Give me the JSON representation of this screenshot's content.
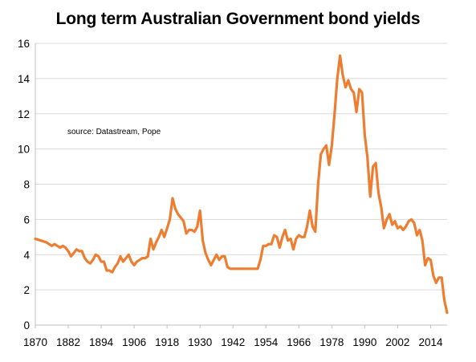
{
  "chart_data": {
    "type": "line",
    "title": "Long term Australian  Government bond yields",
    "xlabel": "",
    "ylabel": "",
    "annotation": "source:  Datastream, Pope",
    "xlim": [
      1870,
      2020
    ],
    "ylim": [
      0,
      16
    ],
    "x_ticks": [
      1870,
      1882,
      1894,
      1906,
      1918,
      1930,
      1942,
      1954,
      1966,
      1978,
      1990,
      2002,
      2014
    ],
    "y_ticks": [
      0,
      2,
      4,
      6,
      8,
      10,
      12,
      14,
      16
    ],
    "grid": true,
    "legend": "none",
    "series": [
      {
        "color": "#ED7D31",
        "x": [
          1870,
          1872,
          1874,
          1876,
          1877,
          1878,
          1879,
          1880,
          1881,
          1882,
          1883,
          1884,
          1885,
          1886,
          1887,
          1888,
          1889,
          1890,
          1891,
          1892,
          1893,
          1894,
          1895,
          1896,
          1897,
          1898,
          1899,
          1900,
          1901,
          1902,
          1903,
          1904,
          1905,
          1906,
          1907,
          1908,
          1909,
          1910,
          1911,
          1912,
          1913,
          1914,
          1915,
          1916,
          1917,
          1918,
          1919,
          1920,
          1921,
          1922,
          1923,
          1924,
          1925,
          1926,
          1927,
          1928,
          1929,
          1930,
          1931,
          1932,
          1933,
          1934,
          1935,
          1936,
          1937,
          1938,
          1939,
          1940,
          1941,
          1942,
          1943,
          1944,
          1945,
          1946,
          1947,
          1948,
          1949,
          1950,
          1951,
          1952,
          1953,
          1954,
          1955,
          1956,
          1957,
          1958,
          1959,
          1960,
          1961,
          1962,
          1963,
          1964,
          1965,
          1966,
          1967,
          1968,
          1969,
          1970,
          1971,
          1972,
          1973,
          1974,
          1975,
          1976,
          1977,
          1978,
          1979,
          1980,
          1981,
          1982,
          1983,
          1984,
          1985,
          1986,
          1987,
          1988,
          1989,
          1990,
          1991,
          1992,
          1993,
          1994,
          1995,
          1996,
          1997,
          1998,
          1999,
          2000,
          2001,
          2002,
          2003,
          2004,
          2005,
          2006,
          2007,
          2008,
          2009,
          2010,
          2011,
          2012,
          2013,
          2014,
          2015,
          2016,
          2017,
          2018,
          2019,
          2020
        ],
        "y": [
          4.9,
          4.8,
          4.7,
          4.5,
          4.6,
          4.5,
          4.4,
          4.5,
          4.4,
          4.2,
          3.9,
          4.1,
          4.3,
          4.2,
          4.2,
          3.8,
          3.6,
          3.5,
          3.7,
          4.0,
          3.9,
          3.6,
          3.6,
          3.1,
          3.1,
          3.0,
          3.3,
          3.5,
          3.9,
          3.6,
          3.8,
          4.0,
          3.6,
          3.4,
          3.6,
          3.7,
          3.8,
          3.8,
          3.9,
          4.9,
          4.3,
          4.7,
          5.0,
          5.4,
          5.0,
          5.5,
          6.0,
          7.2,
          6.6,
          6.3,
          6.1,
          5.9,
          5.2,
          5.4,
          5.4,
          5.3,
          5.6,
          6.5,
          4.8,
          4.1,
          3.7,
          3.4,
          3.7,
          4.0,
          3.7,
          3.9,
          3.9,
          3.3,
          3.2,
          3.2,
          3.2,
          3.2,
          3.2,
          3.2,
          3.2,
          3.2,
          3.2,
          3.2,
          3.2,
          3.7,
          4.5,
          4.5,
          4.6,
          4.6,
          5.1,
          5.0,
          4.4,
          5.0,
          5.4,
          4.8,
          4.9,
          4.3,
          4.9,
          5.1,
          5.0,
          5.0,
          5.6,
          6.5,
          5.6,
          5.3,
          8.0,
          9.7,
          10.0,
          10.2,
          9.1,
          10.2,
          12.0,
          14.0,
          15.3,
          14.2,
          13.5,
          13.9,
          13.4,
          13.2,
          12.1,
          13.4,
          13.2,
          10.8,
          9.5,
          7.3,
          9.0,
          9.2,
          7.5,
          6.7,
          5.5,
          6.0,
          6.3,
          5.7,
          5.9,
          5.5,
          5.6,
          5.4,
          5.6,
          5.9,
          6.0,
          5.8,
          5.1,
          5.4,
          4.8,
          3.4,
          3.8,
          3.7,
          2.8,
          2.4,
          2.7,
          2.7,
          1.4,
          0.7
        ]
      }
    ]
  }
}
